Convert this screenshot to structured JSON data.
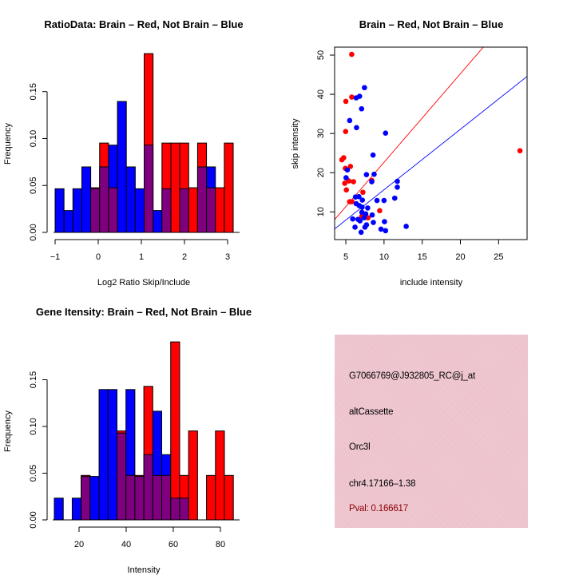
{
  "colors": {
    "red": "#ff0000",
    "blue": "#0000ff",
    "overlap": "#7f007f",
    "pval_text": "#8b0000",
    "panel_bg": "#e9c4cd"
  },
  "chart_data": [
    {
      "id": "ratio-hist",
      "type": "bar",
      "title": "RatioData: Brain – Red, Not Brain – Blue",
      "xlabel": "Log2 Ratio Skip/Include",
      "ylabel": "Frequency",
      "xlim": [
        -1.0,
        3.13
      ],
      "ylim": [
        0,
        0.19
      ],
      "bin_start": -1.0,
      "bin_width": 0.2065,
      "xticks": [
        -1,
        0,
        1,
        2,
        3
      ],
      "xtick_labels": [
        "−1",
        "0",
        "1",
        "2",
        "3"
      ],
      "yticks": [
        0.0,
        0.05,
        0.1,
        0.15
      ],
      "ytick_labels": [
        "0.00",
        "0.05",
        "0.10",
        "0.15"
      ],
      "series": [
        {
          "name": "Not Brain",
          "color": "blue",
          "values": [
            0.0465,
            0.0233,
            0.0465,
            0.0698,
            0.0465,
            0.0698,
            0.093,
            0.1395,
            0.0698,
            0.0465,
            0.093,
            0.0233,
            0.0465,
            0,
            0.0465,
            0,
            0.0698,
            0.0698,
            0,
            0
          ]
        },
        {
          "name": "Brain",
          "color": "red",
          "values": [
            0,
            0,
            0,
            0,
            0.0476,
            0.0952,
            0.0476,
            0,
            0,
            0,
            0.1905,
            0,
            0.0952,
            0.0952,
            0.0952,
            0.0476,
            0.0952,
            0.0476,
            0.0476,
            0.0952
          ]
        }
      ]
    },
    {
      "id": "intensity-scatter",
      "type": "scatter",
      "title": "Brain – Red, Not Brain – Blue",
      "xlabel": "include intensity",
      "ylabel": "skip intensity",
      "xlim": [
        3.53,
        28.73
      ],
      "ylim": [
        2.93,
        52.04
      ],
      "xticks": [
        5,
        10,
        15,
        20,
        25
      ],
      "yticks": [
        10,
        20,
        30,
        40,
        50
      ],
      "series": [
        {
          "name": "Brain",
          "color": "red",
          "points": [
            [
              5.77,
              50.2
            ],
            [
              5.0,
              38.2
            ],
            [
              5.77,
              39.3
            ],
            [
              4.97,
              30.5
            ],
            [
              4.48,
              23.3
            ],
            [
              4.72,
              23.8
            ],
            [
              4.93,
              21.1
            ],
            [
              5.6,
              21.6
            ],
            [
              4.86,
              17.3
            ],
            [
              5.4,
              17.9
            ],
            [
              6.0,
              17.7
            ],
            [
              5.07,
              15.6
            ],
            [
              5.5,
              12.6
            ],
            [
              5.8,
              12.6
            ],
            [
              7.23,
              15.0
            ],
            [
              8.4,
              18.0
            ],
            [
              9.43,
              10.3
            ],
            [
              7.9,
              8.5
            ],
            [
              7.1,
              8.9
            ],
            [
              27.8,
              25.6
            ]
          ],
          "fit_line": {
            "slope": 2.26,
            "intercept": 0.05
          }
        },
        {
          "name": "Not Brain",
          "color": "blue",
          "points": [
            [
              7.44,
              41.7
            ],
            [
              6.36,
              39.1
            ],
            [
              6.8,
              39.5
            ],
            [
              7.06,
              36.3
            ],
            [
              5.5,
              33.3
            ],
            [
              6.4,
              31.5
            ],
            [
              10.2,
              30.1
            ],
            [
              8.56,
              24.5
            ],
            [
              5.2,
              20.7
            ],
            [
              5.03,
              18.7
            ],
            [
              7.7,
              19.5
            ],
            [
              8.7,
              19.6
            ],
            [
              8.39,
              17.7
            ],
            [
              11.74,
              17.8
            ],
            [
              11.74,
              16.3
            ],
            [
              6.26,
              13.8
            ],
            [
              6.7,
              13.9
            ],
            [
              7.16,
              13.0
            ],
            [
              9.08,
              12.9
            ],
            [
              10.0,
              12.9
            ],
            [
              11.4,
              13.5
            ],
            [
              6.36,
              12.1
            ],
            [
              6.75,
              11.6
            ],
            [
              7.13,
              11.2
            ],
            [
              7.86,
              11.0
            ],
            [
              7.1,
              9.9
            ],
            [
              7.6,
              9.5
            ],
            [
              8.45,
              9.2
            ],
            [
              5.9,
              8.2
            ],
            [
              6.6,
              8.1
            ],
            [
              6.85,
              7.7
            ],
            [
              7.4,
              8.5
            ],
            [
              7.7,
              6.7
            ],
            [
              7.5,
              6.1
            ],
            [
              8.6,
              7.3
            ],
            [
              10.06,
              7.5
            ],
            [
              6.2,
              6.1
            ],
            [
              9.6,
              5.6
            ],
            [
              10.2,
              5.2
            ],
            [
              12.9,
              6.3
            ],
            [
              7.0,
              4.8
            ]
          ],
          "fit_line": {
            "slope": 1.544,
            "intercept": 0.2
          }
        }
      ]
    },
    {
      "id": "gene-hist",
      "type": "bar",
      "title": "Gene Itensity: Brain – Red, Not Brain – Blue",
      "xlabel": "Intensity",
      "ylabel": "Frequency",
      "xlim": [
        9.5,
        85.5
      ],
      "ylim": [
        0,
        0.19
      ],
      "bin_start": 9.5,
      "bin_width": 3.8,
      "xticks": [
        20,
        40,
        60,
        80
      ],
      "xtick_labels": [
        "20",
        "40",
        "60",
        "80"
      ],
      "yticks": [
        0.0,
        0.05,
        0.1,
        0.15
      ],
      "ytick_labels": [
        "0.00",
        "0.05",
        "0.10",
        "0.15"
      ],
      "series": [
        {
          "name": "Not Brain",
          "color": "blue",
          "values": [
            0.0233,
            0,
            0.0233,
            0.0465,
            0.0465,
            0.1395,
            0.1395,
            0.093,
            0.1395,
            0.0465,
            0.0698,
            0.1163,
            0.0698,
            0.0233,
            0.0233,
            0,
            0,
            0,
            0,
            0
          ]
        },
        {
          "name": "Brain",
          "color": "red",
          "values": [
            0,
            0,
            0,
            0.0476,
            0,
            0,
            0,
            0.0952,
            0.0476,
            0.0476,
            0.1429,
            0.0476,
            0.0476,
            0.1905,
            0.0476,
            0.0952,
            0,
            0.0476,
            0.0952,
            0.0476
          ]
        }
      ]
    }
  ],
  "info_panel": {
    "probe_id": "G7066769@J932805_RC@j_at",
    "event_type": "altCassette",
    "gene": "Orc3l",
    "location": "chr4.17166–1.38",
    "pval": "Pval: 0.166617"
  }
}
